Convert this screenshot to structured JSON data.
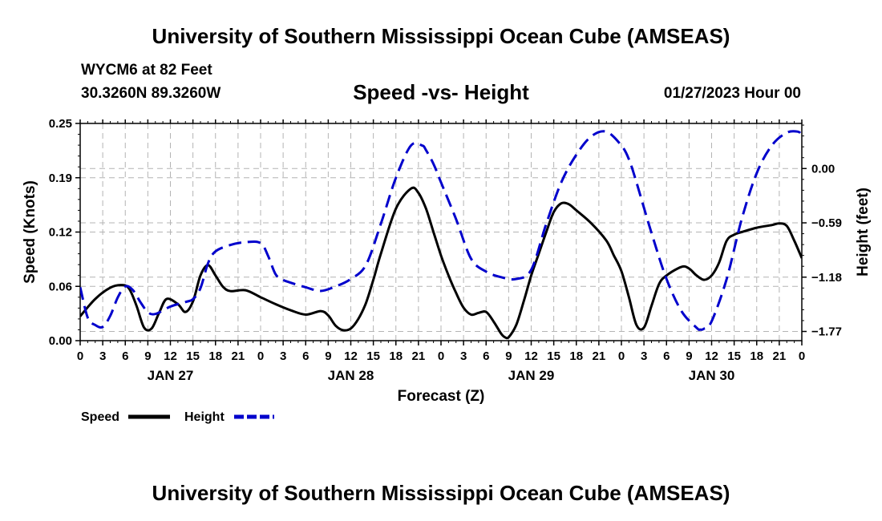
{
  "header": {
    "title": "University of Southern Mississippi Ocean Cube (AMSEAS)",
    "station": "WYCM6 at 82 Feet",
    "coords": "30.3260N  89.3260W",
    "subtitle": "Speed -vs- Height",
    "datetime": "01/27/2023 Hour 00"
  },
  "footer": {
    "title": "University of Southern Mississippi Ocean Cube (AMSEAS)"
  },
  "chart_data": {
    "type": "line",
    "xlabel": "Forecast (Z)",
    "ylabel_left": "Speed (Knots)",
    "ylabel_right": "Height (feet)",
    "x_range_hours": [
      0,
      96
    ],
    "x_tick_step_hours": 3,
    "x_tick_labels": [
      "0",
      "3",
      "6",
      "9",
      "12",
      "15",
      "18",
      "21",
      "0",
      "3",
      "6",
      "9",
      "12",
      "15",
      "18",
      "21",
      "0",
      "3",
      "6",
      "9",
      "12",
      "15",
      "18",
      "21",
      "0",
      "3",
      "6",
      "9",
      "12",
      "15",
      "18",
      "21",
      "0"
    ],
    "day_labels": [
      {
        "label": "JAN 27",
        "hour": 12
      },
      {
        "label": "JAN 28",
        "hour": 36
      },
      {
        "label": "JAN 29",
        "hour": 60
      },
      {
        "label": "JAN 30",
        "hour": 84
      }
    ],
    "ylim_left": [
      0,
      0.25
    ],
    "y_ticks_left": [
      {
        "value": 0,
        "label": "0.00"
      },
      {
        "value": 0.0625,
        "label": "0.06"
      },
      {
        "value": 0.125,
        "label": "0.12"
      },
      {
        "value": 0.1875,
        "label": "0.19"
      },
      {
        "value": 0.25,
        "label": "0.25"
      }
    ],
    "ylim_right": [
      -1.87,
      0.49
    ],
    "y_ticks_right": [
      {
        "value": 0.0,
        "label": "0.00"
      },
      {
        "value": -0.59,
        "label": "−0.59"
      },
      {
        "value": -1.18,
        "label": "−1.18"
      },
      {
        "value": -1.77,
        "label": "−1.77"
      }
    ],
    "grid": true,
    "legend": [
      {
        "name": "Speed",
        "color": "#000000",
        "style": "solid"
      },
      {
        "name": "Height",
        "color": "#0000cc",
        "style": "dashed"
      }
    ],
    "series": [
      {
        "name": "Speed",
        "axis": "left",
        "color": "#000000",
        "x": [
          0,
          2,
          4,
          5.5,
          6.5,
          7.5,
          8.5,
          9.5,
          10.5,
          11.5,
          13,
          14,
          15,
          16,
          17,
          18,
          19,
          20,
          22,
          24,
          26,
          28,
          30,
          32,
          33,
          34,
          35,
          36,
          37,
          38,
          39,
          40,
          42,
          44,
          45,
          46,
          47,
          48,
          49,
          50,
          51,
          52,
          53,
          54,
          55,
          56,
          56.5,
          57,
          58,
          59,
          60,
          61,
          62,
          63,
          64,
          65,
          66,
          68,
          70,
          71,
          72,
          73,
          74,
          75,
          76,
          77,
          78,
          80,
          81,
          82,
          83,
          84,
          85,
          86,
          87,
          88,
          90,
          92,
          93,
          94,
          95,
          96
        ],
        "values": [
          0.028,
          0.048,
          0.061,
          0.064,
          0.06,
          0.04,
          0.015,
          0.014,
          0.032,
          0.048,
          0.042,
          0.033,
          0.045,
          0.075,
          0.087,
          0.075,
          0.062,
          0.057,
          0.058,
          0.05,
          0.042,
          0.035,
          0.03,
          0.034,
          0.029,
          0.017,
          0.012,
          0.014,
          0.025,
          0.043,
          0.07,
          0.1,
          0.152,
          0.175,
          0.17,
          0.152,
          0.125,
          0.098,
          0.075,
          0.055,
          0.038,
          0.03,
          0.032,
          0.033,
          0.022,
          0.008,
          0.004,
          0.004,
          0.018,
          0.045,
          0.075,
          0.1,
          0.125,
          0.148,
          0.158,
          0.157,
          0.15,
          0.135,
          0.115,
          0.098,
          0.08,
          0.05,
          0.018,
          0.015,
          0.04,
          0.065,
          0.075,
          0.085,
          0.083,
          0.075,
          0.07,
          0.075,
          0.09,
          0.115,
          0.122,
          0.125,
          0.13,
          0.133,
          0.135,
          0.132,
          0.115,
          0.095
        ]
      },
      {
        "name": "Height",
        "axis": "right",
        "color": "#0000cc",
        "x": [
          0,
          1,
          2,
          3,
          4,
          5,
          6,
          7,
          8,
          9,
          10,
          12,
          14,
          15,
          16,
          17,
          18,
          20,
          22,
          24,
          25,
          26,
          27,
          28,
          30,
          32,
          34,
          36,
          38,
          40,
          42,
          44,
          45.5,
          46,
          47,
          48,
          50,
          52,
          54,
          56,
          58,
          60,
          62,
          64,
          66,
          68,
          70,
          72,
          73,
          74,
          76,
          78,
          80,
          82,
          82.5,
          83,
          84,
          86,
          88,
          90,
          92,
          94,
          95.5,
          96
        ],
        "values": [
          -1.29,
          -1.62,
          -1.7,
          -1.72,
          -1.6,
          -1.4,
          -1.28,
          -1.32,
          -1.45,
          -1.56,
          -1.58,
          -1.5,
          -1.45,
          -1.42,
          -1.3,
          -1.03,
          -0.9,
          -0.83,
          -0.8,
          -0.81,
          -0.95,
          -1.15,
          -1.21,
          -1.24,
          -1.29,
          -1.33,
          -1.28,
          -1.2,
          -1.05,
          -0.6,
          -0.1,
          0.25,
          0.25,
          0.2,
          0.05,
          -0.15,
          -0.55,
          -0.98,
          -1.12,
          -1.18,
          -1.2,
          -1.1,
          -0.6,
          -0.15,
          0.15,
          0.35,
          0.4,
          0.25,
          0.1,
          -0.15,
          -0.7,
          -1.2,
          -1.55,
          -1.73,
          -1.75,
          -1.74,
          -1.66,
          -1.2,
          -0.55,
          -0.05,
          0.25,
          0.39,
          0.4,
          0.36
        ]
      }
    ]
  }
}
